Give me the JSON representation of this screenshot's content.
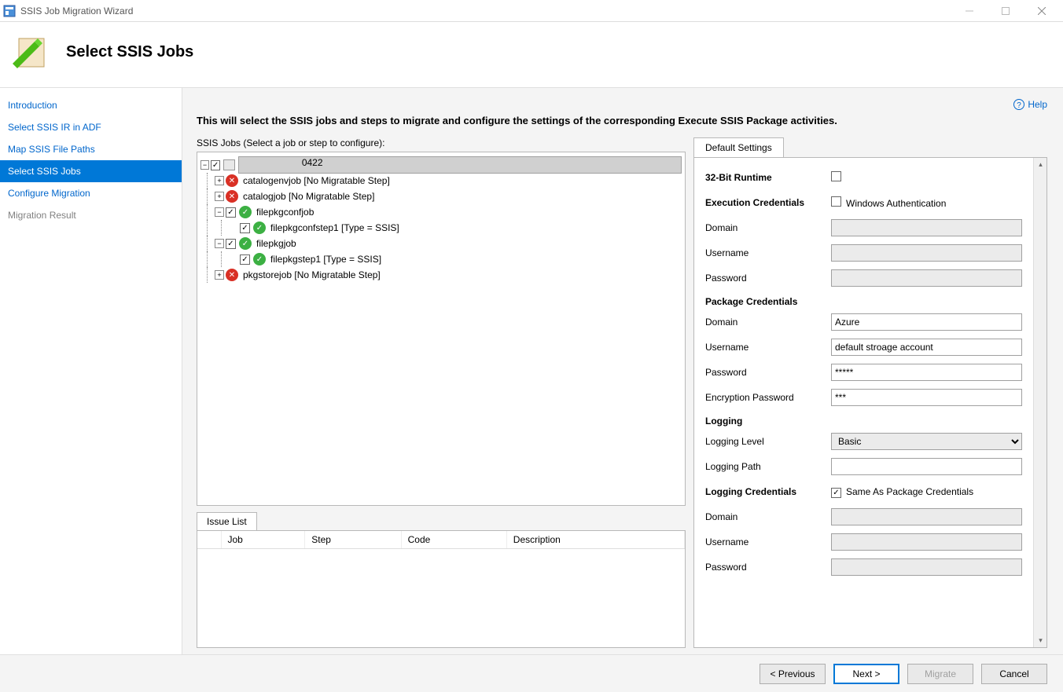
{
  "window": {
    "title": "SSIS Job Migration Wizard"
  },
  "header": {
    "title": "Select SSIS Jobs"
  },
  "nav": {
    "items": [
      {
        "label": "Introduction",
        "state": "past"
      },
      {
        "label": "Select SSIS IR in ADF",
        "state": "past"
      },
      {
        "label": "Map SSIS File Paths",
        "state": "past"
      },
      {
        "label": "Select SSIS Jobs",
        "state": "active"
      },
      {
        "label": "Configure Migration",
        "state": "past"
      },
      {
        "label": "Migration Result",
        "state": "future"
      }
    ]
  },
  "help": {
    "label": "Help"
  },
  "instruction": "This will select the SSIS jobs and steps to migrate and configure the settings of the corresponding Execute SSIS Package activities.",
  "jobs": {
    "label": "SSIS Jobs (Select a job or step to configure):",
    "rootSuffix": "0422",
    "items": [
      {
        "name": "catalogenvjob",
        "suffix": " [No Migratable Step]",
        "status": "err",
        "checkbox": false,
        "toggle": "+",
        "indent": 1
      },
      {
        "name": "catalogjob",
        "suffix": " [No Migratable Step]",
        "status": "err",
        "checkbox": false,
        "toggle": "+",
        "indent": 1
      },
      {
        "name": "filepkgconfjob",
        "suffix": "",
        "status": "ok",
        "checkbox": true,
        "checked": true,
        "toggle": "-",
        "indent": 1
      },
      {
        "name": "filepkgconfstep1",
        "suffix": " [Type = SSIS]",
        "status": "ok",
        "checkbox": true,
        "checked": true,
        "toggle": "",
        "indent": 2
      },
      {
        "name": "filepkgjob",
        "suffix": "",
        "status": "ok",
        "checkbox": true,
        "checked": true,
        "toggle": "-",
        "indent": 1
      },
      {
        "name": "filepkgstep1",
        "suffix": " [Type = SSIS]",
        "status": "ok",
        "checkbox": true,
        "checked": true,
        "toggle": "",
        "indent": 2
      },
      {
        "name": "pkgstorejob",
        "suffix": " [No Migratable Step]",
        "status": "err",
        "checkbox": false,
        "toggle": "+",
        "indent": 1
      }
    ]
  },
  "issueList": {
    "tab": "Issue List",
    "cols": [
      "Job",
      "Step",
      "Code",
      "Description"
    ]
  },
  "settings": {
    "tab": "Default Settings",
    "runtime": {
      "label": "32-Bit Runtime",
      "checked": false
    },
    "execCreds": {
      "label": "Execution Credentials",
      "winAuth": {
        "label": "Windows Authentication",
        "checked": false
      },
      "domain": {
        "label": "Domain",
        "value": "",
        "disabled": true
      },
      "username": {
        "label": "Username",
        "value": "",
        "disabled": true
      },
      "password": {
        "label": "Password",
        "value": "",
        "disabled": true
      }
    },
    "pkgCreds": {
      "label": "Package Credentials",
      "domain": {
        "label": "Domain",
        "value": "Azure"
      },
      "username": {
        "label": "Username",
        "value": "default stroage account"
      },
      "password": {
        "label": "Password",
        "value": "*****"
      },
      "encPw": {
        "label": "Encryption Password",
        "value": "***"
      }
    },
    "logging": {
      "label": "Logging",
      "level": {
        "label": "Logging Level",
        "value": "Basic"
      },
      "path": {
        "label": "Logging Path",
        "value": ""
      }
    },
    "logCreds": {
      "label": "Logging Credentials",
      "sameAs": {
        "label": "Same As Package Credentials",
        "checked": true
      },
      "domain": {
        "label": "Domain",
        "value": "",
        "disabled": true
      },
      "username": {
        "label": "Username",
        "value": "",
        "disabled": true
      },
      "password": {
        "label": "Password",
        "value": "",
        "disabled": true
      }
    }
  },
  "footer": {
    "previous": "< Previous",
    "next": "Next >",
    "migrate": "Migrate",
    "cancel": "Cancel"
  }
}
